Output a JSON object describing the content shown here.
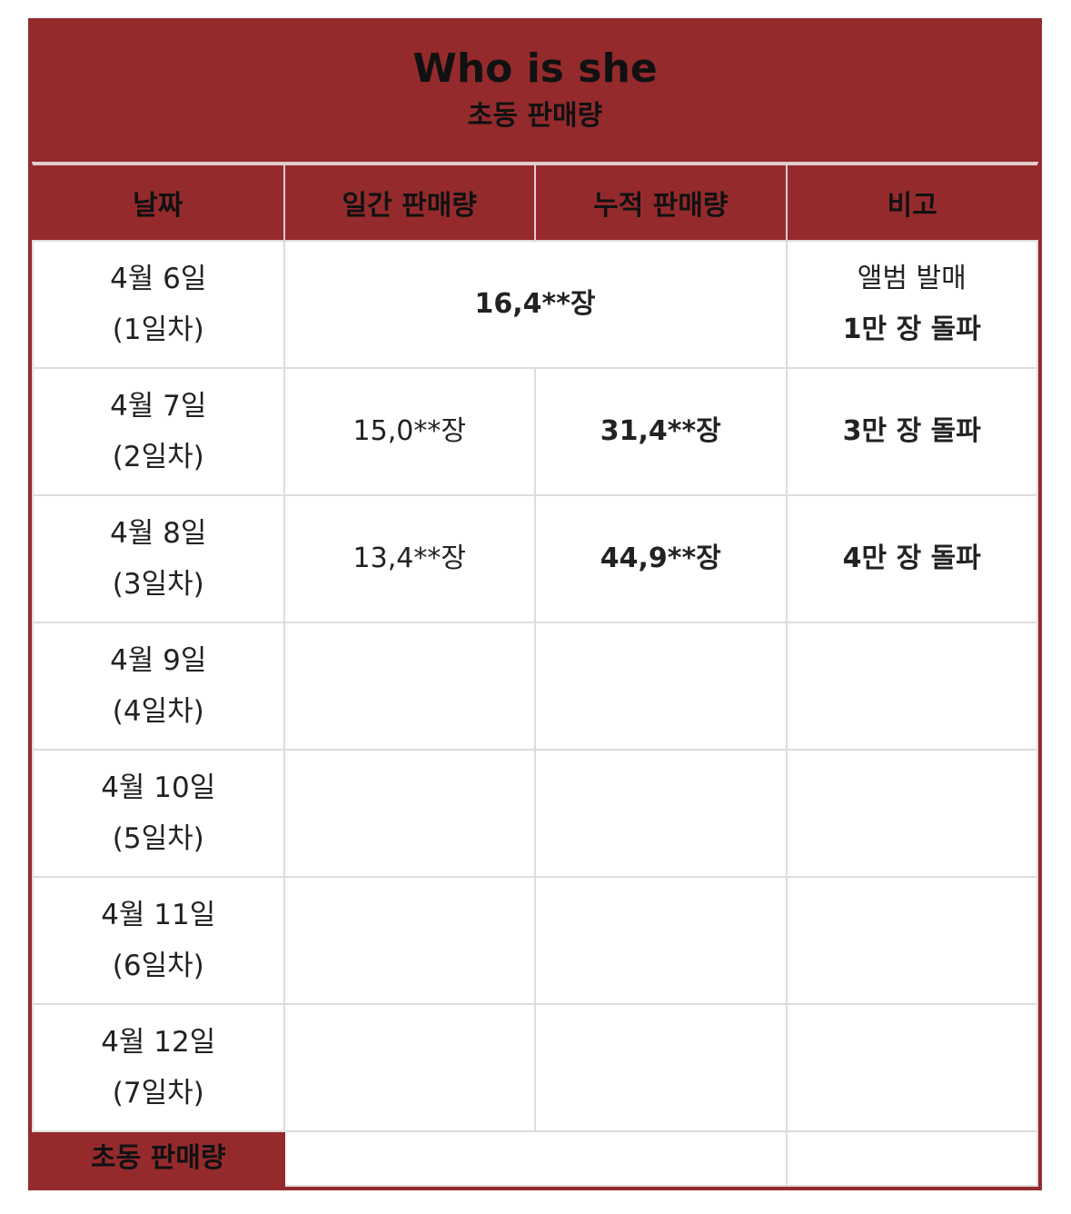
{
  "title": "Who is she",
  "subtitle": "초동 판매량",
  "columns": [
    "날짜",
    "일간 판매량",
    "누적 판매량",
    "비고"
  ],
  "rows": [
    {
      "date": "4월 6일",
      "day": "(1일차)",
      "daily": "16,4**장",
      "cumulative": "",
      "note_line1": "앨범 발매",
      "note_line2": "1만 장 돌파"
    },
    {
      "date": "4월 7일",
      "day": "(2일차)",
      "daily": "15,0**장",
      "cumulative": "31,4**장",
      "note_line1": "3만 장 돌파",
      "note_line2": ""
    },
    {
      "date": "4월 8일",
      "day": "(3일차)",
      "daily": "13,4**장",
      "cumulative": "44,9**장",
      "note_line1": "4만 장 돌파",
      "note_line2": ""
    },
    {
      "date": "4월 9일",
      "day": "(4일차)",
      "daily": "",
      "cumulative": "",
      "note_line1": "",
      "note_line2": ""
    },
    {
      "date": "4월 10일",
      "day": "(5일차)",
      "daily": "",
      "cumulative": "",
      "note_line1": "",
      "note_line2": ""
    },
    {
      "date": "4월 11일",
      "day": "(6일차)",
      "daily": "",
      "cumulative": "",
      "note_line1": "",
      "note_line2": ""
    },
    {
      "date": "4월 12일",
      "day": "(7일차)",
      "daily": "",
      "cumulative": "",
      "note_line1": "",
      "note_line2": ""
    }
  ],
  "total_label": "초동 판매량",
  "colors": {
    "accent": "#952a2d",
    "grid": "#dddddd"
  }
}
